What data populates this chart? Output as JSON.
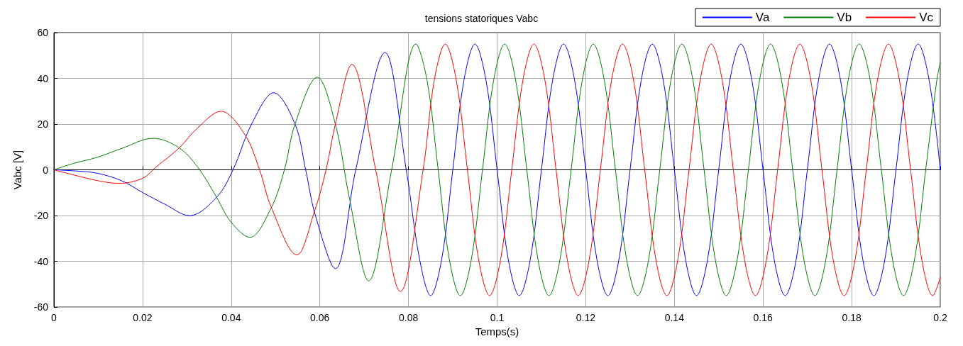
{
  "chart_data": {
    "type": "line",
    "title": "tensions statoriques Vabc",
    "xlabel": "Temps(s)",
    "ylabel": "Vabc [V]",
    "xlim": [
      0,
      0.2
    ],
    "ylim": [
      -60,
      60
    ],
    "xticks": [
      0,
      0.02,
      0.04,
      0.06,
      0.08,
      0.1,
      0.12,
      0.14,
      0.16,
      0.18,
      0.2
    ],
    "yticks": [
      -60,
      -40,
      -20,
      0,
      20,
      40,
      60
    ],
    "grid": true,
    "legend": "top right",
    "series": [
      {
        "name": "Va",
        "color": "#0000ff",
        "x": [
          0,
          0.005,
          0.0098,
          0.0152,
          0.02,
          0.025,
          0.0306,
          0.0367,
          0.0404,
          0.0446,
          0.0496,
          0.0544,
          0.0568,
          0.059,
          0.0635,
          0.0681,
          0.0747,
          0.0795,
          0.0825,
          0.085,
          0.0875,
          0.09,
          0.0925,
          0.095,
          0.0975,
          0.1,
          0.1025,
          0.105,
          0.1075,
          0.11,
          0.1125,
          0.115,
          0.1175,
          0.12,
          0.1225,
          0.125,
          0.1275,
          0.13,
          0.1325,
          0.135,
          0.1375,
          0.14,
          0.1425,
          0.145,
          0.1475,
          0.15,
          0.1525,
          0.155,
          0.1575,
          0.16,
          0.1625,
          0.165,
          0.1675,
          0.17,
          0.1725,
          0.175,
          0.1775,
          0.18,
          0.1825,
          0.185,
          0.1875,
          0.19,
          0.1925,
          0.195,
          0.1975,
          0.2
        ],
        "values": [
          0,
          -0.5,
          -1.5,
          -4.7,
          -9.9,
          -15,
          -20,
          -12,
          0,
          20,
          33.7,
          20,
          0,
          -20,
          -43.2,
          0,
          51.3,
          0,
          -39,
          -55,
          -39,
          0,
          39,
          55,
          39,
          0,
          -39,
          -55,
          -39,
          0,
          39,
          55,
          39,
          0,
          -39,
          -55,
          -39,
          0,
          39,
          55,
          39,
          0,
          -39,
          -55,
          -39,
          0,
          39,
          55,
          39,
          0,
          -39,
          -55,
          -39,
          0,
          39,
          55,
          39,
          0,
          -39,
          -55,
          -39,
          0,
          39,
          55,
          39,
          0
        ]
      },
      {
        "name": "Vb",
        "color": "#008000",
        "x": [
          0,
          0.0044,
          0.0098,
          0.0152,
          0.0224,
          0.0281,
          0.0324,
          0.0367,
          0.0399,
          0.0442,
          0.049,
          0.052,
          0.0544,
          0.0594,
          0.0635,
          0.0667,
          0.071,
          0.0762,
          0.0817,
          0.0842,
          0.0867,
          0.0892,
          0.0917,
          0.0942,
          0.0967,
          0.0992,
          0.1017,
          0.1042,
          0.1067,
          0.1092,
          0.1117,
          0.1142,
          0.1167,
          0.1192,
          0.1217,
          0.1242,
          0.1267,
          0.1292,
          0.1317,
          0.1342,
          0.1367,
          0.1392,
          0.1417,
          0.1442,
          0.1467,
          0.1492,
          0.1517,
          0.1542,
          0.1567,
          0.1592,
          0.1617,
          0.1642,
          0.1667,
          0.1692,
          0.1717,
          0.1742,
          0.1767,
          0.1792,
          0.1817,
          0.1842,
          0.1867,
          0.1892,
          0.1917,
          0.1942,
          0.1967,
          0.1992,
          0.2
        ],
        "values": [
          0,
          2.8,
          5.5,
          9.3,
          13.8,
          9.8,
          1.3,
          -12,
          -22.7,
          -29.5,
          -16.7,
          0,
          20,
          40.5,
          20,
          -12.7,
          -48.5,
          0,
          55,
          39,
          0,
          -39,
          -55,
          -39,
          0,
          39,
          55,
          39,
          0,
          -39,
          -55,
          -39,
          0,
          39,
          55,
          39,
          0,
          -39,
          -55,
          -39,
          0,
          39,
          55,
          39,
          0,
          -39,
          -55,
          -39,
          0,
          39,
          55,
          39,
          0,
          -39,
          -55,
          -39,
          0,
          39,
          55,
          39,
          0,
          -39,
          -55,
          -39,
          0,
          39,
          47
        ]
      },
      {
        "name": "Vc",
        "color": "#ff0000",
        "x": [
          0,
          0.005,
          0.0098,
          0.0146,
          0.02,
          0.0232,
          0.0281,
          0.0324,
          0.0377,
          0.0431,
          0.0464,
          0.049,
          0.0548,
          0.0587,
          0.0614,
          0.0635,
          0.0672,
          0.0726,
          0.0782,
          0.0833,
          0.0858,
          0.0883,
          0.0908,
          0.0933,
          0.0958,
          0.0983,
          0.1008,
          0.1033,
          0.1058,
          0.1083,
          0.1108,
          0.1133,
          0.1158,
          0.1183,
          0.1208,
          0.1233,
          0.1258,
          0.1283,
          0.1308,
          0.1333,
          0.1358,
          0.1383,
          0.1408,
          0.1433,
          0.1458,
          0.1483,
          0.1508,
          0.1533,
          0.1558,
          0.1583,
          0.1608,
          0.1633,
          0.1658,
          0.1683,
          0.1708,
          0.1733,
          0.1758,
          0.1783,
          0.1808,
          0.1833,
          0.1858,
          0.1883,
          0.1908,
          0.1933,
          0.1958,
          0.1983,
          0.2
        ],
        "values": [
          0,
          -2.5,
          -4.7,
          -5.9,
          -3.7,
          1.5,
          9.3,
          18.3,
          25.6,
          15.3,
          0,
          -16.2,
          -37.2,
          -18.7,
          0,
          20,
          46.1,
          0,
          -53.2,
          0,
          39,
          55,
          39,
          0,
          -39,
          -55,
          -39,
          0,
          39,
          55,
          39,
          0,
          -39,
          -55,
          -39,
          0,
          39,
          55,
          39,
          0,
          -39,
          -55,
          -39,
          0,
          39,
          55,
          39,
          0,
          -39,
          -55,
          -39,
          0,
          39,
          55,
          39,
          0,
          -39,
          -55,
          -39,
          0,
          39,
          55,
          39,
          0,
          -39,
          -55,
          -47
        ]
      }
    ]
  }
}
